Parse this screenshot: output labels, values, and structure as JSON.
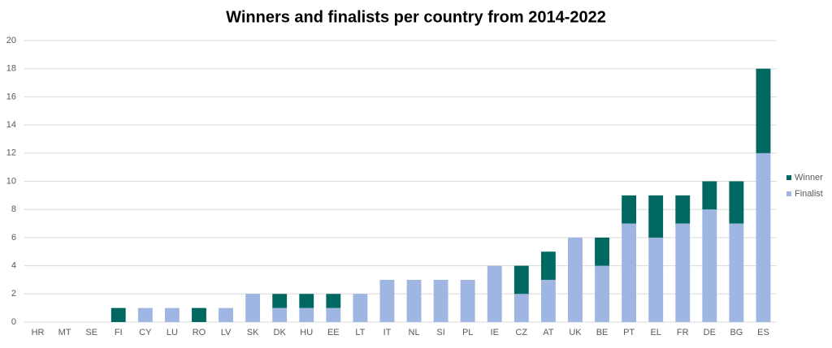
{
  "chart_data": {
    "type": "stacked_bar",
    "title": "Winners and finalists per country from 2014-2022",
    "categories": [
      "HR",
      "MT",
      "SE",
      "FI",
      "CY",
      "LU",
      "RO",
      "LV",
      "SK",
      "DK",
      "HU",
      "EE",
      "LT",
      "IT",
      "NL",
      "SI",
      "PL",
      "IE",
      "CZ",
      "AT",
      "UK",
      "BE",
      "PT",
      "EL",
      "FR",
      "DE",
      "BG",
      "ES"
    ],
    "series": [
      {
        "name": "Finalist",
        "color": "#9fb6e2",
        "values": [
          0,
          0,
          0,
          0,
          1,
          1,
          0,
          1,
          2,
          1,
          1,
          1,
          2,
          3,
          3,
          3,
          3,
          4,
          2,
          3,
          6,
          4,
          7,
          6,
          7,
          8,
          7,
          12
        ]
      },
      {
        "name": "Winner",
        "color": "#006861",
        "values": [
          0,
          0,
          0,
          1,
          0,
          0,
          1,
          0,
          0,
          1,
          1,
          1,
          0,
          0,
          0,
          0,
          0,
          0,
          2,
          2,
          0,
          2,
          2,
          3,
          2,
          2,
          3,
          6
        ]
      }
    ],
    "ylim": [
      0,
      20
    ],
    "yticks": [
      0,
      2,
      4,
      6,
      8,
      10,
      12,
      14,
      16,
      18,
      20
    ],
    "grid": true,
    "legend": "right"
  }
}
